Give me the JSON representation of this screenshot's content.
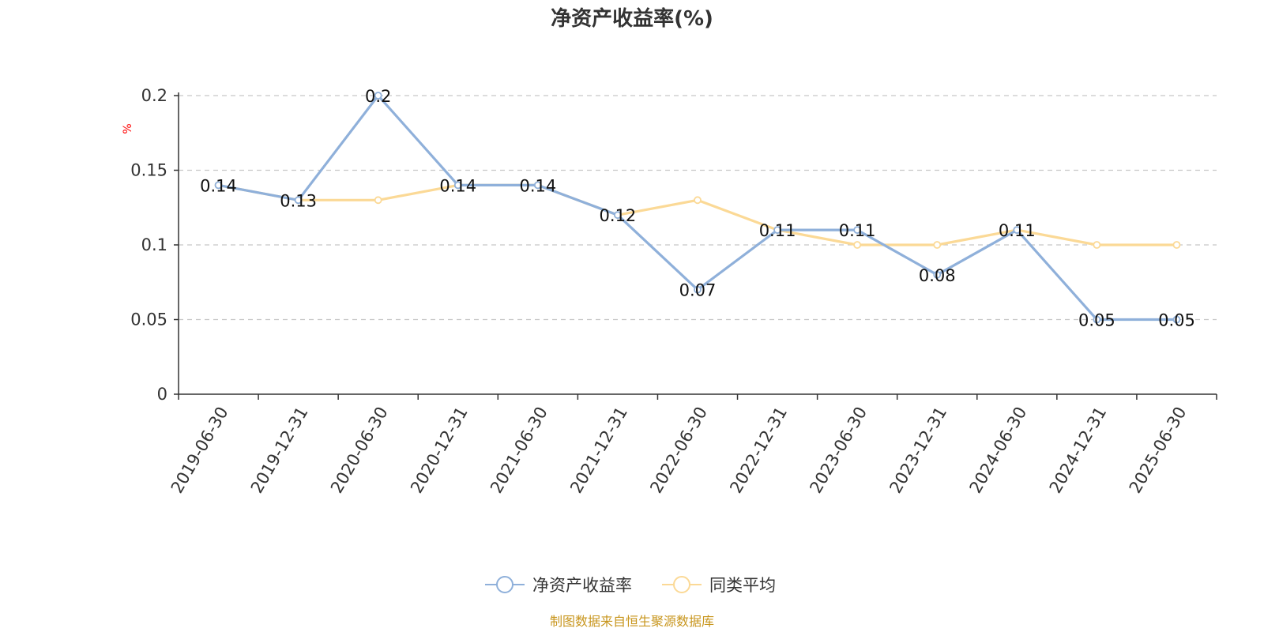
{
  "chart_data": {
    "type": "line",
    "title": "净资产收益率(%)",
    "ylabel": "%",
    "xlabel": "",
    "ylim": [
      0,
      0.2
    ],
    "yticks": [
      "0",
      "0.05",
      "0.1",
      "0.15",
      "0.2"
    ],
    "ytick_values": [
      0,
      0.05,
      0.1,
      0.15,
      0.2
    ],
    "grid": true,
    "legend_position": "bottom-center",
    "categories": [
      "2019-06-30",
      "2019-12-31",
      "2020-06-30",
      "2020-12-31",
      "2021-06-30",
      "2021-12-31",
      "2022-06-30",
      "2022-12-31",
      "2023-06-30",
      "2023-12-31",
      "2024-06-30",
      "2024-12-31",
      "2025-06-30"
    ],
    "series": [
      {
        "name": "净资产收益率",
        "color": "#8fb0da",
        "values": [
          0.14,
          0.13,
          0.2,
          0.14,
          0.14,
          0.12,
          0.07,
          0.11,
          0.11,
          0.08,
          0.11,
          0.05,
          0.05
        ],
        "labels": [
          "0.14",
          "0.13",
          "0.2",
          "0.14",
          "0.14",
          "0.12",
          "0.07",
          "0.11",
          "0.11",
          "0.08",
          "0.11",
          "0.05",
          "0.05"
        ]
      },
      {
        "name": "同类平均",
        "color": "#fbd996",
        "values": [
          0.14,
          0.13,
          0.13,
          0.14,
          0.14,
          0.12,
          0.13,
          0.11,
          0.1,
          0.1,
          0.11,
          0.1,
          0.1
        ]
      }
    ],
    "source": "制图数据来自恒生聚源数据库"
  }
}
